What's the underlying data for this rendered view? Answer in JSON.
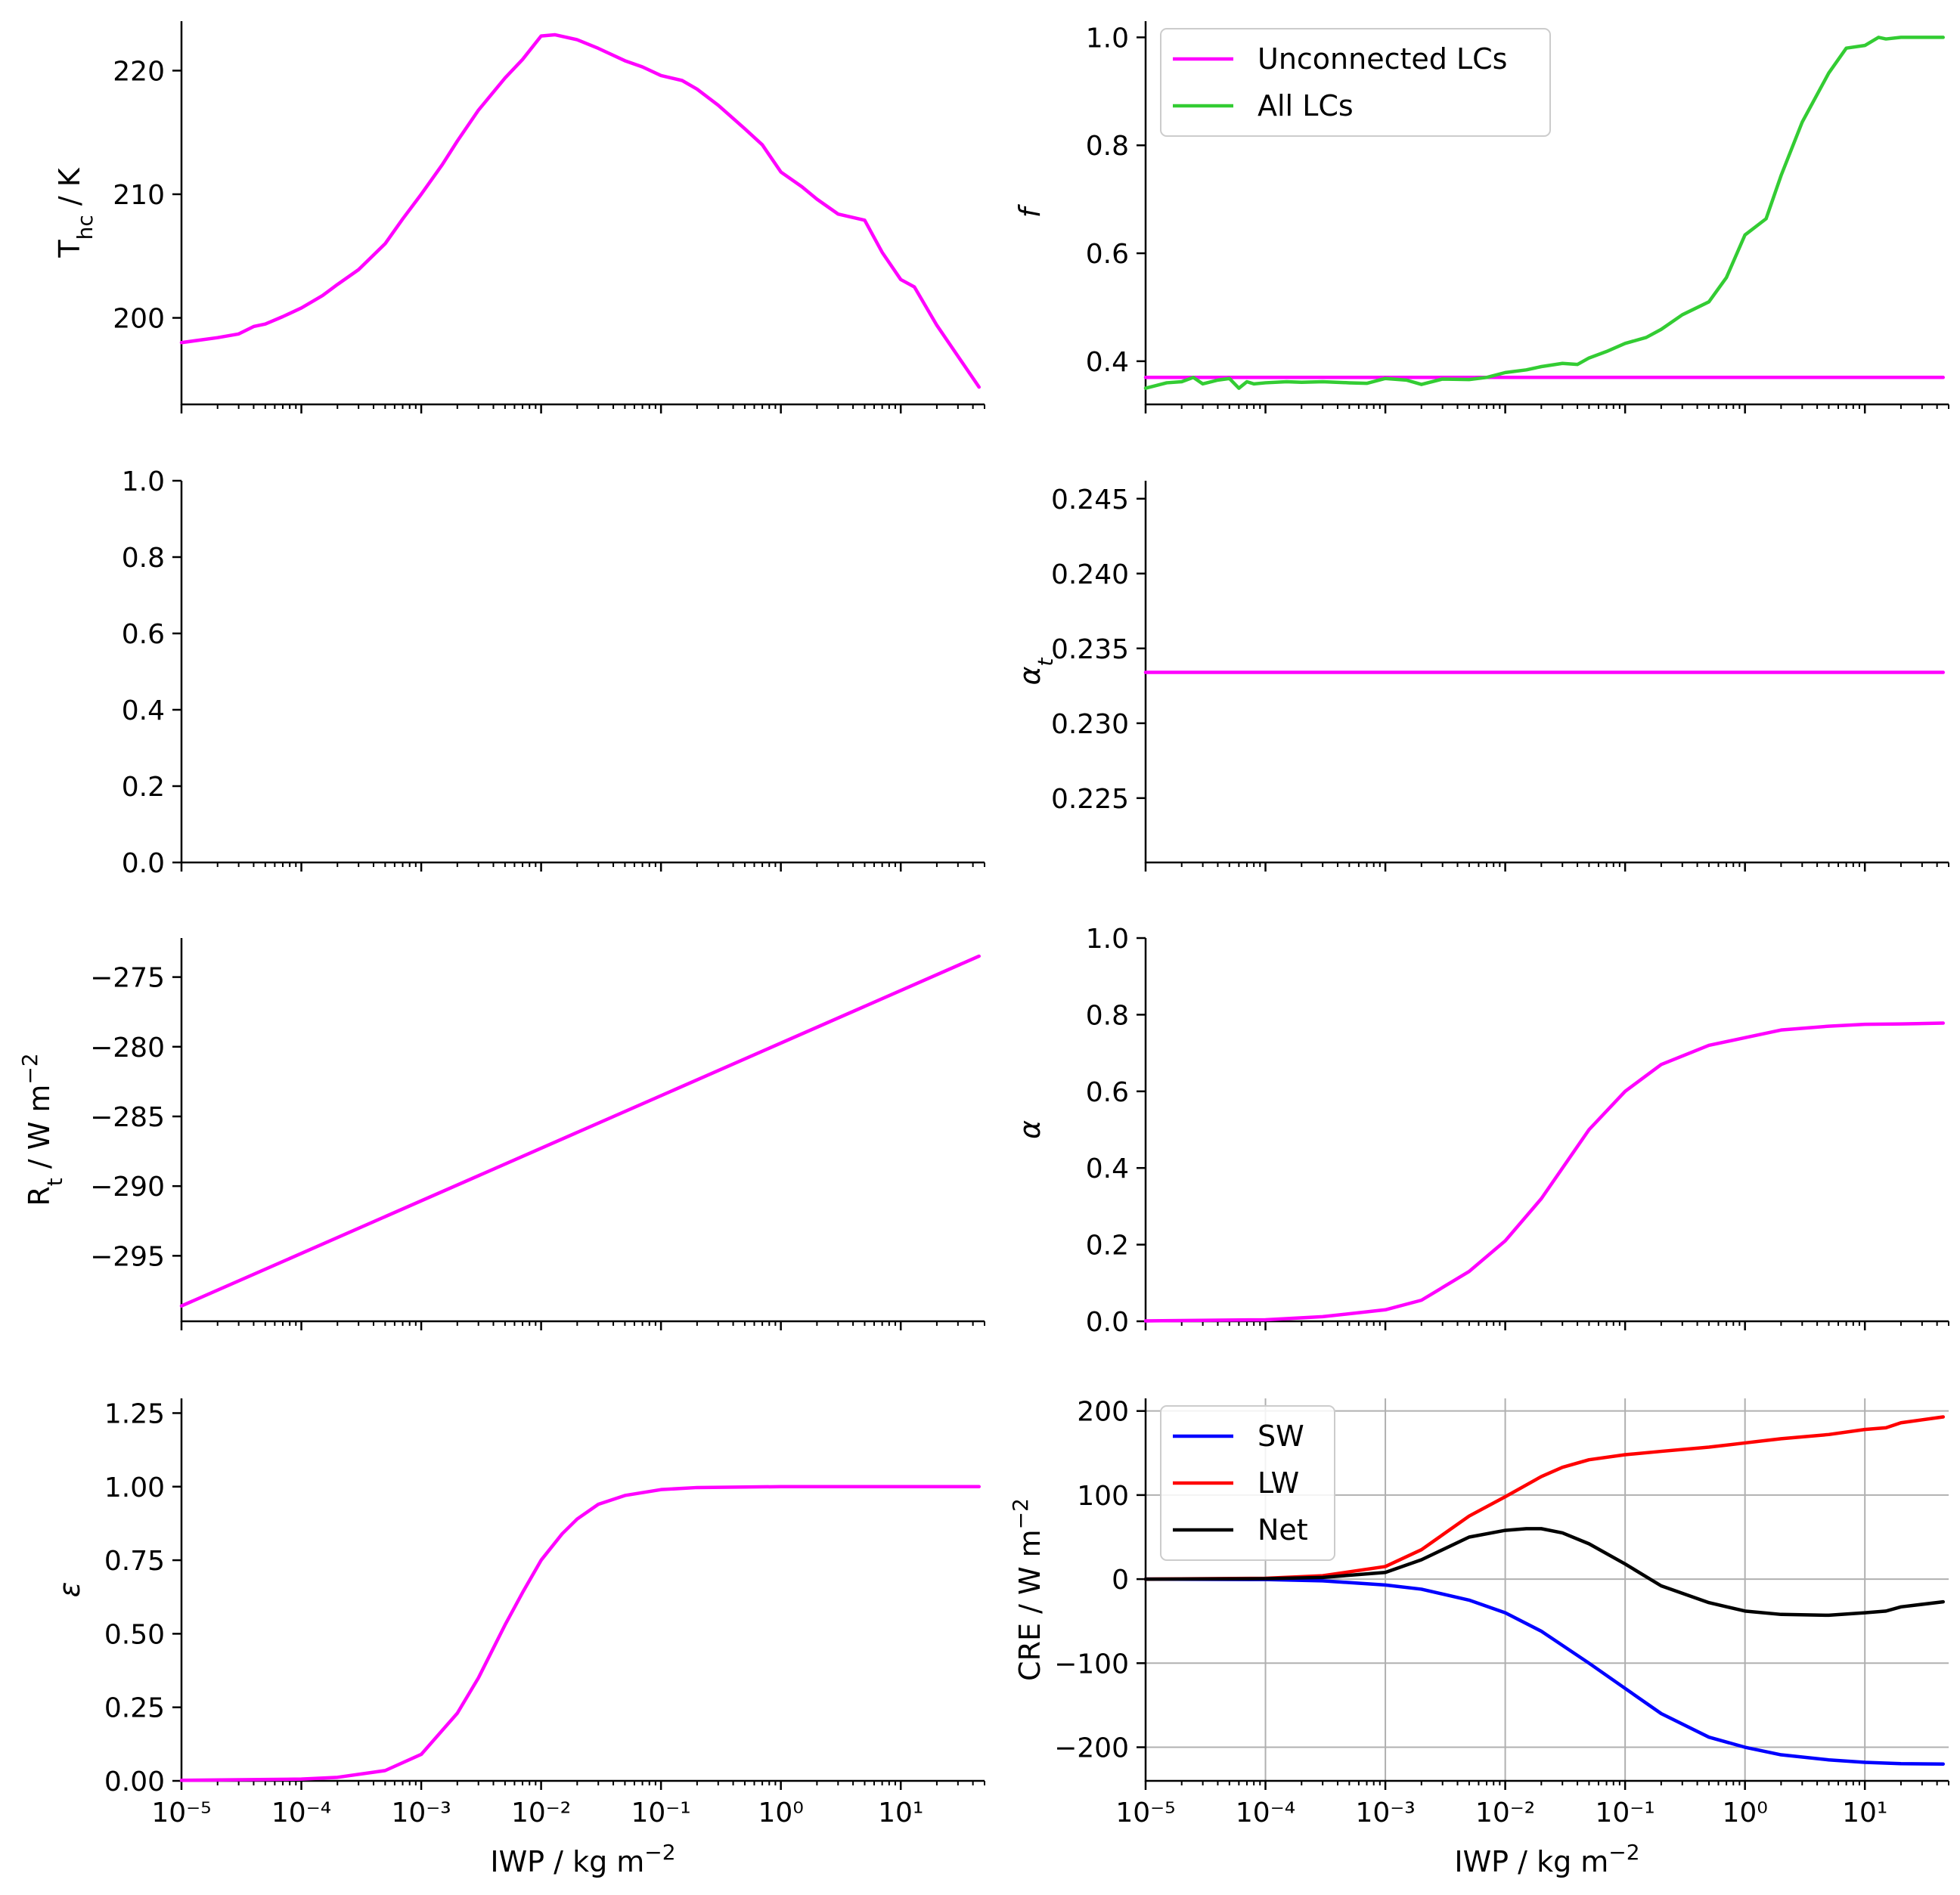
{
  "figure": {
    "colors": {
      "magenta": "#ff00ff",
      "green": "#33cc33",
      "blue": "#0000ff",
      "red": "#ff0000",
      "black": "#000000",
      "grid": "#b0b0b0"
    }
  },
  "chart_data": [
    {
      "id": "thc",
      "type": "line",
      "xscale": "log",
      "xlim": [
        1e-05,
        50
      ],
      "ylim": [
        193,
        224
      ],
      "xlabel": "",
      "ylabel": "T_hc / K",
      "ylabel_base": "T",
      "ylabel_sub": "hc",
      "ylabel_rest": " / K",
      "yticks": [
        200,
        210,
        220
      ],
      "ytick_labels": [
        "200",
        "210",
        "220"
      ],
      "grid": false,
      "legend": null,
      "series": [
        {
          "color": "#ff00ff",
          "x": [
            1e-05,
            2e-05,
            3e-05,
            4e-05,
            5e-05,
            7e-05,
            0.0001,
            0.00015,
            0.0002,
            0.0003,
            0.0005,
            0.0007,
            0.001,
            0.0015,
            0.002,
            0.003,
            0.005,
            0.007,
            0.01,
            0.013,
            0.02,
            0.03,
            0.05,
            0.07,
            0.1,
            0.15,
            0.2,
            0.3,
            0.5,
            0.7,
            1,
            1.5,
            2,
            3,
            5,
            7,
            10,
            13,
            20,
            30,
            45
          ],
          "y": [
            198,
            198.4,
            198.7,
            199.3,
            199.5,
            200.1,
            200.8,
            201.8,
            202.7,
            203.9,
            206.0,
            208.0,
            210.0,
            212.4,
            214.3,
            216.8,
            219.4,
            220.9,
            222.8,
            222.9,
            222.5,
            221.8,
            220.8,
            220.3,
            219.6,
            219.2,
            218.5,
            217.2,
            215.3,
            214.0,
            211.8,
            210.6,
            209.6,
            208.4,
            207.9,
            205.3,
            203.1,
            202.5,
            199.4,
            196.9,
            194.4
          ]
        }
      ]
    },
    {
      "id": "f",
      "type": "line",
      "xscale": "log",
      "xlim": [
        1e-05,
        50
      ],
      "ylim": [
        0.32,
        1.03
      ],
      "xlabel": "",
      "ylabel": "f",
      "ylabel_italic": true,
      "yticks": [
        0.4,
        0.6,
        0.8,
        1.0
      ],
      "ytick_labels": [
        "0.4",
        "0.6",
        "0.8",
        "1.0"
      ],
      "grid": false,
      "legend": "upper left",
      "series": [
        {
          "name": "Unconnected LCs",
          "color": "#ff00ff",
          "x": [
            1e-05,
            45
          ],
          "y": [
            0.37,
            0.37
          ]
        },
        {
          "name": "All LCs",
          "color": "#33cc33",
          "x": [
            1e-05,
            1.5e-05,
            2e-05,
            2.5e-05,
            3e-05,
            4e-05,
            5e-05,
            6e-05,
            7e-05,
            8e-05,
            0.0001,
            0.00015,
            0.0002,
            0.0003,
            0.0005,
            0.0007,
            0.001,
            0.0015,
            0.002,
            0.003,
            0.005,
            0.007,
            0.01,
            0.015,
            0.02,
            0.03,
            0.04,
            0.05,
            0.07,
            0.1,
            0.15,
            0.2,
            0.3,
            0.5,
            0.7,
            1,
            1.5,
            2,
            3,
            5,
            7,
            10,
            13,
            15,
            20,
            30,
            45
          ],
          "y": [
            0.35,
            0.36,
            0.362,
            0.37,
            0.358,
            0.365,
            0.368,
            0.35,
            0.362,
            0.358,
            0.36,
            0.362,
            0.361,
            0.362,
            0.36,
            0.359,
            0.368,
            0.365,
            0.357,
            0.367,
            0.366,
            0.37,
            0.379,
            0.384,
            0.39,
            0.396,
            0.394,
            0.406,
            0.418,
            0.433,
            0.444,
            0.459,
            0.486,
            0.51,
            0.555,
            0.634,
            0.664,
            0.744,
            0.843,
            0.934,
            0.98,
            0.985,
            1.0,
            0.997,
            1.0,
            1.0,
            1.0
          ]
        }
      ]
    },
    {
      "id": "empty",
      "type": "line",
      "xscale": "log",
      "xlim": [
        1e-05,
        50
      ],
      "ylim": [
        0,
        1.0
      ],
      "xlabel": "",
      "ylabel": "",
      "yticks": [
        0,
        0.2,
        0.4,
        0.6,
        0.8,
        1.0
      ],
      "ytick_labels": [
        "0.0",
        "0.2",
        "0.4",
        "0.6",
        "0.8",
        "1.0"
      ],
      "grid": false,
      "legend": null,
      "series": []
    },
    {
      "id": "alpha_t",
      "type": "line",
      "xscale": "log",
      "xlim": [
        1e-05,
        50
      ],
      "ylim": [
        0.2207,
        0.2462
      ],
      "xlabel": "",
      "ylabel": "α_t",
      "ylabel_base": "α",
      "ylabel_sub": "t",
      "ylabel_italic": true,
      "yticks": [
        0.225,
        0.23,
        0.235,
        0.24,
        0.245
      ],
      "ytick_labels": [
        "0.225",
        "0.230",
        "0.235",
        "0.240",
        "0.245"
      ],
      "grid": false,
      "legend": null,
      "series": [
        {
          "color": "#ff00ff",
          "x": [
            1e-05,
            45
          ],
          "y": [
            0.2334,
            0.2334
          ]
        }
      ]
    },
    {
      "id": "rt",
      "type": "line",
      "xscale": "log",
      "xlim": [
        1e-05,
        50
      ],
      "ylim": [
        -299.7,
        -272.2
      ],
      "xlabel": "",
      "ylabel": "R_t / W m^-2",
      "ylabel_base": "R",
      "ylabel_sub": "t",
      "ylabel_rest": " / W m",
      "ylabel_sup": "−2",
      "yticks": [
        -295,
        -290,
        -285,
        -280,
        -275
      ],
      "ytick_labels": [
        "−295",
        "−290",
        "−285",
        "−280",
        "−275"
      ],
      "grid": false,
      "legend": null,
      "series": [
        {
          "color": "#ff00ff",
          "x": [
            1e-05,
            45
          ],
          "y": [
            -298.6,
            -273.5
          ]
        }
      ]
    },
    {
      "id": "alpha",
      "type": "line",
      "xscale": "log",
      "xlim": [
        1e-05,
        50
      ],
      "ylim": [
        0,
        1.0
      ],
      "xlabel": "",
      "ylabel": "α",
      "ylabel_italic": true,
      "yticks": [
        0,
        0.2,
        0.4,
        0.6,
        0.8,
        1.0
      ],
      "ytick_labels": [
        "0.0",
        "0.2",
        "0.4",
        "0.6",
        "0.8",
        "1.0"
      ],
      "grid": false,
      "legend": null,
      "series": [
        {
          "color": "#ff00ff",
          "x": [
            1e-05,
            0.0001,
            0.0003,
            0.001,
            0.002,
            0.005,
            0.01,
            0.02,
            0.05,
            0.1,
            0.2,
            0.5,
            1,
            2,
            5,
            10,
            20,
            45
          ],
          "y": [
            0.001,
            0.004,
            0.012,
            0.03,
            0.055,
            0.13,
            0.21,
            0.32,
            0.5,
            0.6,
            0.67,
            0.72,
            0.74,
            0.76,
            0.77,
            0.775,
            0.776,
            0.778
          ]
        }
      ]
    },
    {
      "id": "eps",
      "type": "line",
      "xscale": "log",
      "xlim": [
        1e-05,
        50
      ],
      "ylim": [
        0,
        1.3
      ],
      "xlabel": "IWP / kg m^-2",
      "xlabel_base": "IWP / kg m",
      "xlabel_sup": "−2",
      "ylabel": "ε",
      "ylabel_italic": true,
      "yticks": [
        0,
        0.25,
        0.5,
        0.75,
        1.0,
        1.25
      ],
      "ytick_labels": [
        "0.00",
        "0.25",
        "0.50",
        "0.75",
        "1.00",
        "1.25"
      ],
      "xtick_labels": [
        "10⁻⁵",
        "10⁻⁴",
        "10⁻³",
        "10⁻²",
        "10⁻¹",
        "10⁰",
        "10¹"
      ],
      "grid": false,
      "legend": null,
      "series": [
        {
          "color": "#ff00ff",
          "x": [
            1e-05,
            0.0001,
            0.0002,
            0.0005,
            0.001,
            0.002,
            0.003,
            0.005,
            0.007,
            0.01,
            0.015,
            0.02,
            0.03,
            0.05,
            0.1,
            0.2,
            1,
            10,
            45
          ],
          "y": [
            0.002,
            0.006,
            0.012,
            0.035,
            0.09,
            0.23,
            0.35,
            0.53,
            0.64,
            0.75,
            0.84,
            0.89,
            0.94,
            0.97,
            0.99,
            0.997,
            1.0,
            1.0,
            1.0
          ]
        }
      ]
    },
    {
      "id": "cre",
      "type": "line",
      "xscale": "log",
      "xlim": [
        1e-05,
        50
      ],
      "ylim": [
        -240,
        215
      ],
      "xlabel": "IWP / kg m^-2",
      "xlabel_base": "IWP / kg m",
      "xlabel_sup": "−2",
      "ylabel": "CRE / W m^-2",
      "ylabel_base": "CRE / W m",
      "ylabel_sup": "−2",
      "yticks": [
        -200,
        -100,
        0,
        100,
        200
      ],
      "ytick_labels": [
        "−200",
        "−100",
        "0",
        "100",
        "200"
      ],
      "xtick_labels": [
        "10⁻⁵",
        "10⁻⁴",
        "10⁻³",
        "10⁻²",
        "10⁻¹",
        "10⁰",
        "10¹"
      ],
      "grid": true,
      "legend": "upper left",
      "series": [
        {
          "name": "SW",
          "color": "#0000ff",
          "x": [
            1e-05,
            0.0001,
            0.0003,
            0.001,
            0.002,
            0.005,
            0.01,
            0.02,
            0.05,
            0.1,
            0.2,
            0.5,
            1,
            2,
            5,
            10,
            20,
            45
          ],
          "y": [
            0,
            -0.5,
            -2,
            -7,
            -12,
            -25,
            -40,
            -62,
            -100,
            -130,
            -160,
            -188,
            -200,
            -209,
            -215,
            -218,
            -219.5,
            -220
          ]
        },
        {
          "name": "LW",
          "color": "#ff0000",
          "x": [
            1e-05,
            0.0001,
            0.0003,
            0.001,
            0.002,
            0.005,
            0.01,
            0.02,
            0.03,
            0.05,
            0.1,
            0.2,
            0.5,
            1,
            2,
            5,
            10,
            15,
            20,
            45
          ],
          "y": [
            0,
            1,
            4,
            15,
            35,
            75,
            98,
            122,
            133,
            142,
            148,
            152,
            157,
            162,
            167,
            172,
            178,
            180,
            186,
            193
          ]
        },
        {
          "name": "Net",
          "color": "#000000",
          "x": [
            1e-05,
            0.0001,
            0.0003,
            0.001,
            0.002,
            0.005,
            0.01,
            0.015,
            0.02,
            0.03,
            0.05,
            0.1,
            0.2,
            0.5,
            1,
            2,
            5,
            10,
            15,
            20,
            45
          ],
          "y": [
            0,
            0.5,
            2,
            8,
            23,
            50,
            58,
            60,
            60,
            55,
            42,
            18,
            -8,
            -28,
            -38,
            -42,
            -43,
            -40,
            -38,
            -33,
            -27
          ]
        }
      ]
    }
  ]
}
